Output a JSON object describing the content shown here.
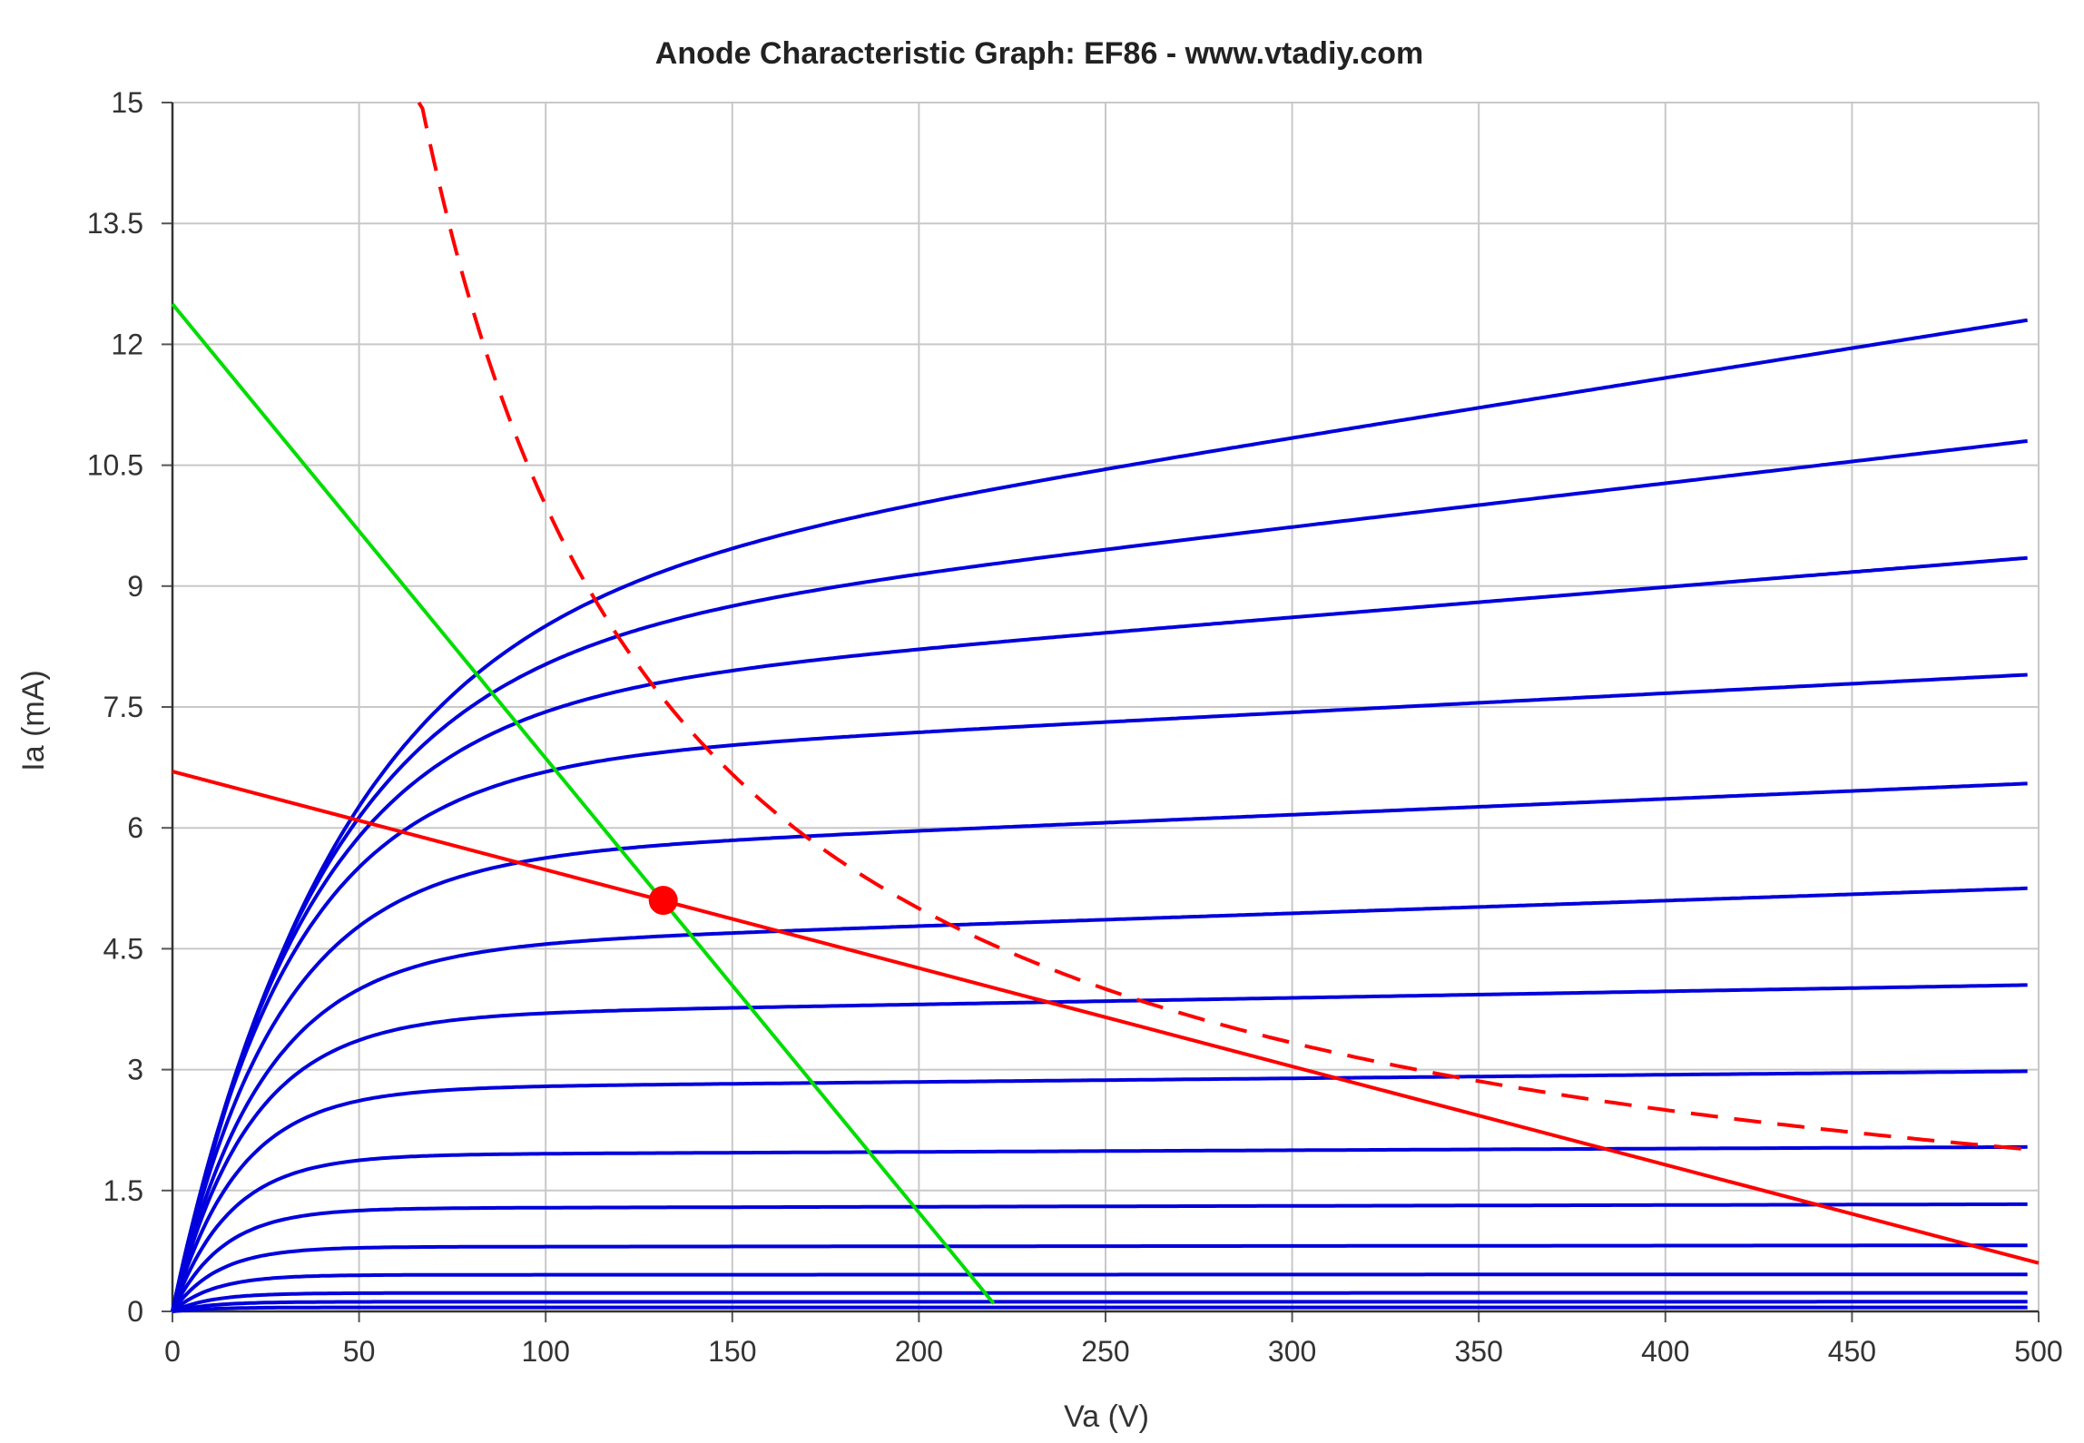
{
  "chart_data": {
    "type": "line",
    "title": "Anode Characteristic Graph: EF86 - www.vtadiy.com",
    "xlabel": "Va (V)",
    "ylabel": "Ia (mA)",
    "xlim": [
      0,
      500
    ],
    "ylim": [
      0,
      15
    ],
    "x_ticks": [
      "0",
      "50",
      "100",
      "150",
      "200",
      "250",
      "300",
      "350",
      "400",
      "450",
      "500"
    ],
    "y_ticks": [
      "0",
      "1.5",
      "3",
      "4.5",
      "6",
      "7.5",
      "9",
      "10.5",
      "12",
      "13.5",
      "15"
    ],
    "grid": true,
    "colors": {
      "curves": "#0000dd",
      "load_line": "#ff0000",
      "max_dissipation": "#ff0000",
      "green_line": "#00dd00",
      "operating_point": "#ff0000",
      "grid": "#c8c8c8"
    },
    "curve_va_max": 497,
    "anode_curves": [
      {
        "ia_sat": 12.3,
        "slope": 0.0006
      },
      {
        "ia_sat": 10.8,
        "slope": 0.0005
      },
      {
        "ia_sat": 9.35,
        "slope": 0.0004
      },
      {
        "ia_sat": 7.9,
        "slope": 0.0003
      },
      {
        "ia_sat": 6.55,
        "slope": 0.0003
      },
      {
        "ia_sat": 5.25,
        "slope": 0.0003
      },
      {
        "ia_sat": 4.05,
        "slope": 0.0002
      },
      {
        "ia_sat": 2.98,
        "slope": 0.00015
      },
      {
        "ia_sat": 2.04,
        "slope": 0.0001
      },
      {
        "ia_sat": 1.33,
        "slope": 8e-05
      },
      {
        "ia_sat": 0.82,
        "slope": 5e-05
      },
      {
        "ia_sat": 0.46,
        "slope": 3e-05
      },
      {
        "ia_sat": 0.23,
        "slope": 2e-05
      },
      {
        "ia_sat": 0.12,
        "slope": 1e-05
      },
      {
        "ia_sat": 0.05,
        "slope": 0.0
      }
    ],
    "load_line": {
      "x": [
        0,
        500
      ],
      "y": [
        6.7,
        0.6
      ]
    },
    "green_line": {
      "x": [
        0,
        220
      ],
      "y": [
        12.5,
        0.1
      ]
    },
    "max_dissipation": {
      "power_mw": 1000,
      "va_range": [
        66,
        497
      ]
    },
    "operating_point": {
      "va": 131.5,
      "ia": 5.1
    }
  }
}
